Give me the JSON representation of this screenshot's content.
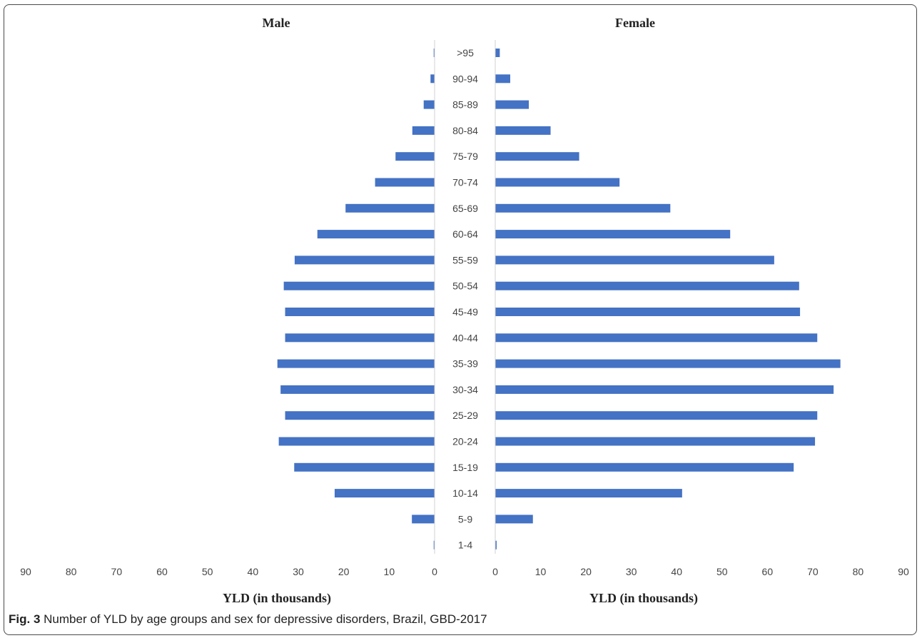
{
  "chart_data": {
    "type": "bar",
    "orientation": "horizontal-population-pyramid",
    "categories": [
      ">95",
      "90-94",
      "85-89",
      "80-84",
      "75-79",
      "70-74",
      "65-69",
      "60-64",
      "55-59",
      "50-54",
      "45-49",
      "40-44",
      "35-39",
      "30-34",
      "25-29",
      "20-24",
      "15-19",
      "10-14",
      "5-9",
      "1-4"
    ],
    "series": [
      {
        "name": "Male",
        "values": [
          0.2,
          0.9,
          2.4,
          4.9,
          8.6,
          13.1,
          19.6,
          25.8,
          30.8,
          33.2,
          32.9,
          32.9,
          34.6,
          33.9,
          32.9,
          34.3,
          30.9,
          22.0,
          5.0,
          0.2
        ]
      },
      {
        "name": "Female",
        "values": [
          1.0,
          3.3,
          7.4,
          12.2,
          18.5,
          27.4,
          38.6,
          51.8,
          61.5,
          67.0,
          67.2,
          71.0,
          76.1,
          74.6,
          71.0,
          70.5,
          65.8,
          41.2,
          8.3,
          0.3
        ]
      }
    ],
    "male_title": "Male",
    "female_title": "Female",
    "male_xlabel": "YLD (in thousands)",
    "female_xlabel": "YLD (in thousands)",
    "ticks": [
      0,
      10,
      20,
      30,
      40,
      50,
      60,
      70,
      80,
      90
    ],
    "xlim": [
      0,
      90
    ],
    "bar_color": "#4472C4",
    "divider_color": "#d0d0d0",
    "grid": false,
    "legend": "none"
  },
  "caption": {
    "label": "Fig. 3",
    "text": "Number of YLD by age groups and sex for depressive disorders, Brazil, GBD-2017"
  }
}
